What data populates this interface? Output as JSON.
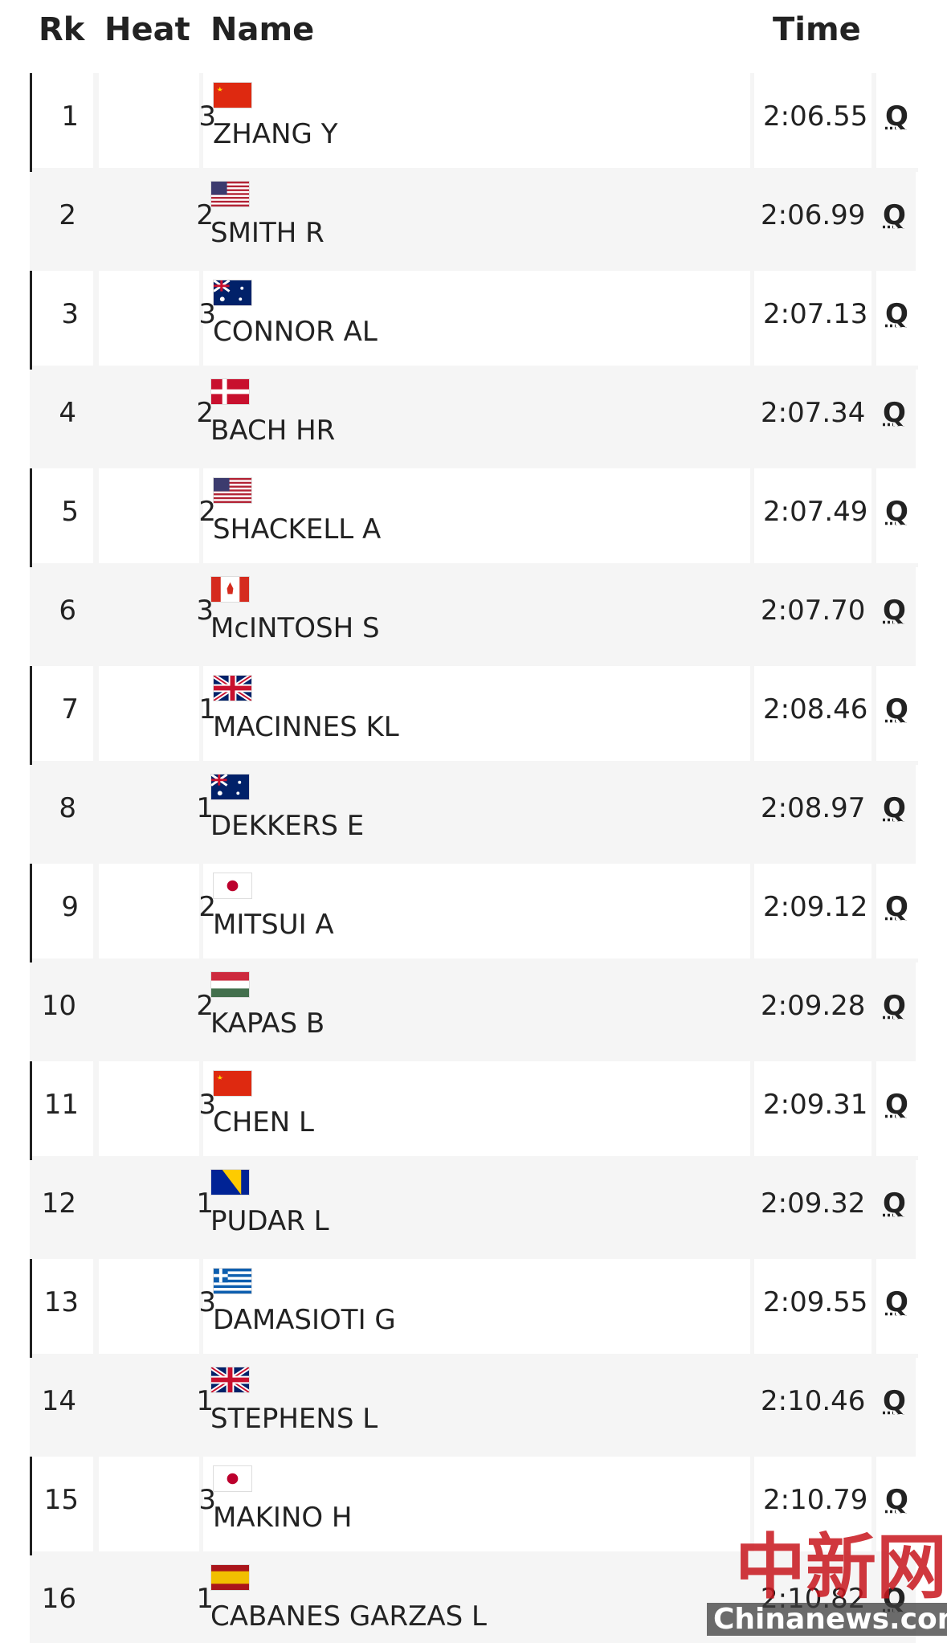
{
  "header": {
    "rank": "Rk",
    "heat": "Heat",
    "name": "Name",
    "time": "Time"
  },
  "rows": [
    {
      "rank": 1,
      "heat": 3,
      "name": "ZHANG Y",
      "time": "2:06.55",
      "qualifier": "Q"
    },
    {
      "rank": 2,
      "heat": 2,
      "name": "SMITH R",
      "time": "2:06.99",
      "qualifier": "Q"
    },
    {
      "rank": 3,
      "heat": 3,
      "name": "CONNOR AL",
      "time": "2:07.13",
      "qualifier": "Q"
    },
    {
      "rank": 4,
      "heat": 2,
      "name": "BACH HR",
      "time": "2:07.34",
      "qualifier": "Q"
    },
    {
      "rank": 5,
      "heat": 2,
      "name": "SHACKELL A",
      "time": "2:07.49",
      "qualifier": "Q"
    },
    {
      "rank": 6,
      "heat": 3,
      "name": "McINTOSH S",
      "time": "2:07.70",
      "qualifier": "Q"
    },
    {
      "rank": 7,
      "heat": 1,
      "name": "MACINNES KL",
      "time": "2:08.46",
      "qualifier": "Q"
    },
    {
      "rank": 8,
      "heat": 1,
      "name": "DEKKERS E",
      "time": "2:08.97",
      "qualifier": "Q"
    },
    {
      "rank": 9,
      "heat": 2,
      "name": "MITSUI A",
      "time": "2:09.12",
      "qualifier": "Q"
    },
    {
      "rank": 10,
      "heat": 2,
      "name": "KAPAS B",
      "time": "2:09.28",
      "qualifier": "Q"
    },
    {
      "rank": 11,
      "heat": 3,
      "name": "CHEN L",
      "time": "2:09.31",
      "qualifier": "Q"
    },
    {
      "rank": 12,
      "heat": 1,
      "name": "PUDAR L",
      "time": "2:09.32",
      "qualifier": "Q"
    },
    {
      "rank": 13,
      "heat": 3,
      "name": "DAMASIOTI G",
      "time": "2:09.55",
      "qualifier": "Q"
    },
    {
      "rank": 14,
      "heat": 1,
      "name": "STEPHENS L",
      "time": "2:10.46",
      "qualifier": "Q"
    },
    {
      "rank": 15,
      "heat": 3,
      "name": "MAKINO H",
      "time": "2:10.79",
      "qualifier": "Q"
    },
    {
      "rank": 16,
      "heat": 1,
      "name": "CABANES GARZAS L",
      "time": "2:10.82",
      "qualifier": "Q"
    }
  ],
  "watermark": {
    "logo": "中新网",
    "site": "Chinanews.com"
  }
}
